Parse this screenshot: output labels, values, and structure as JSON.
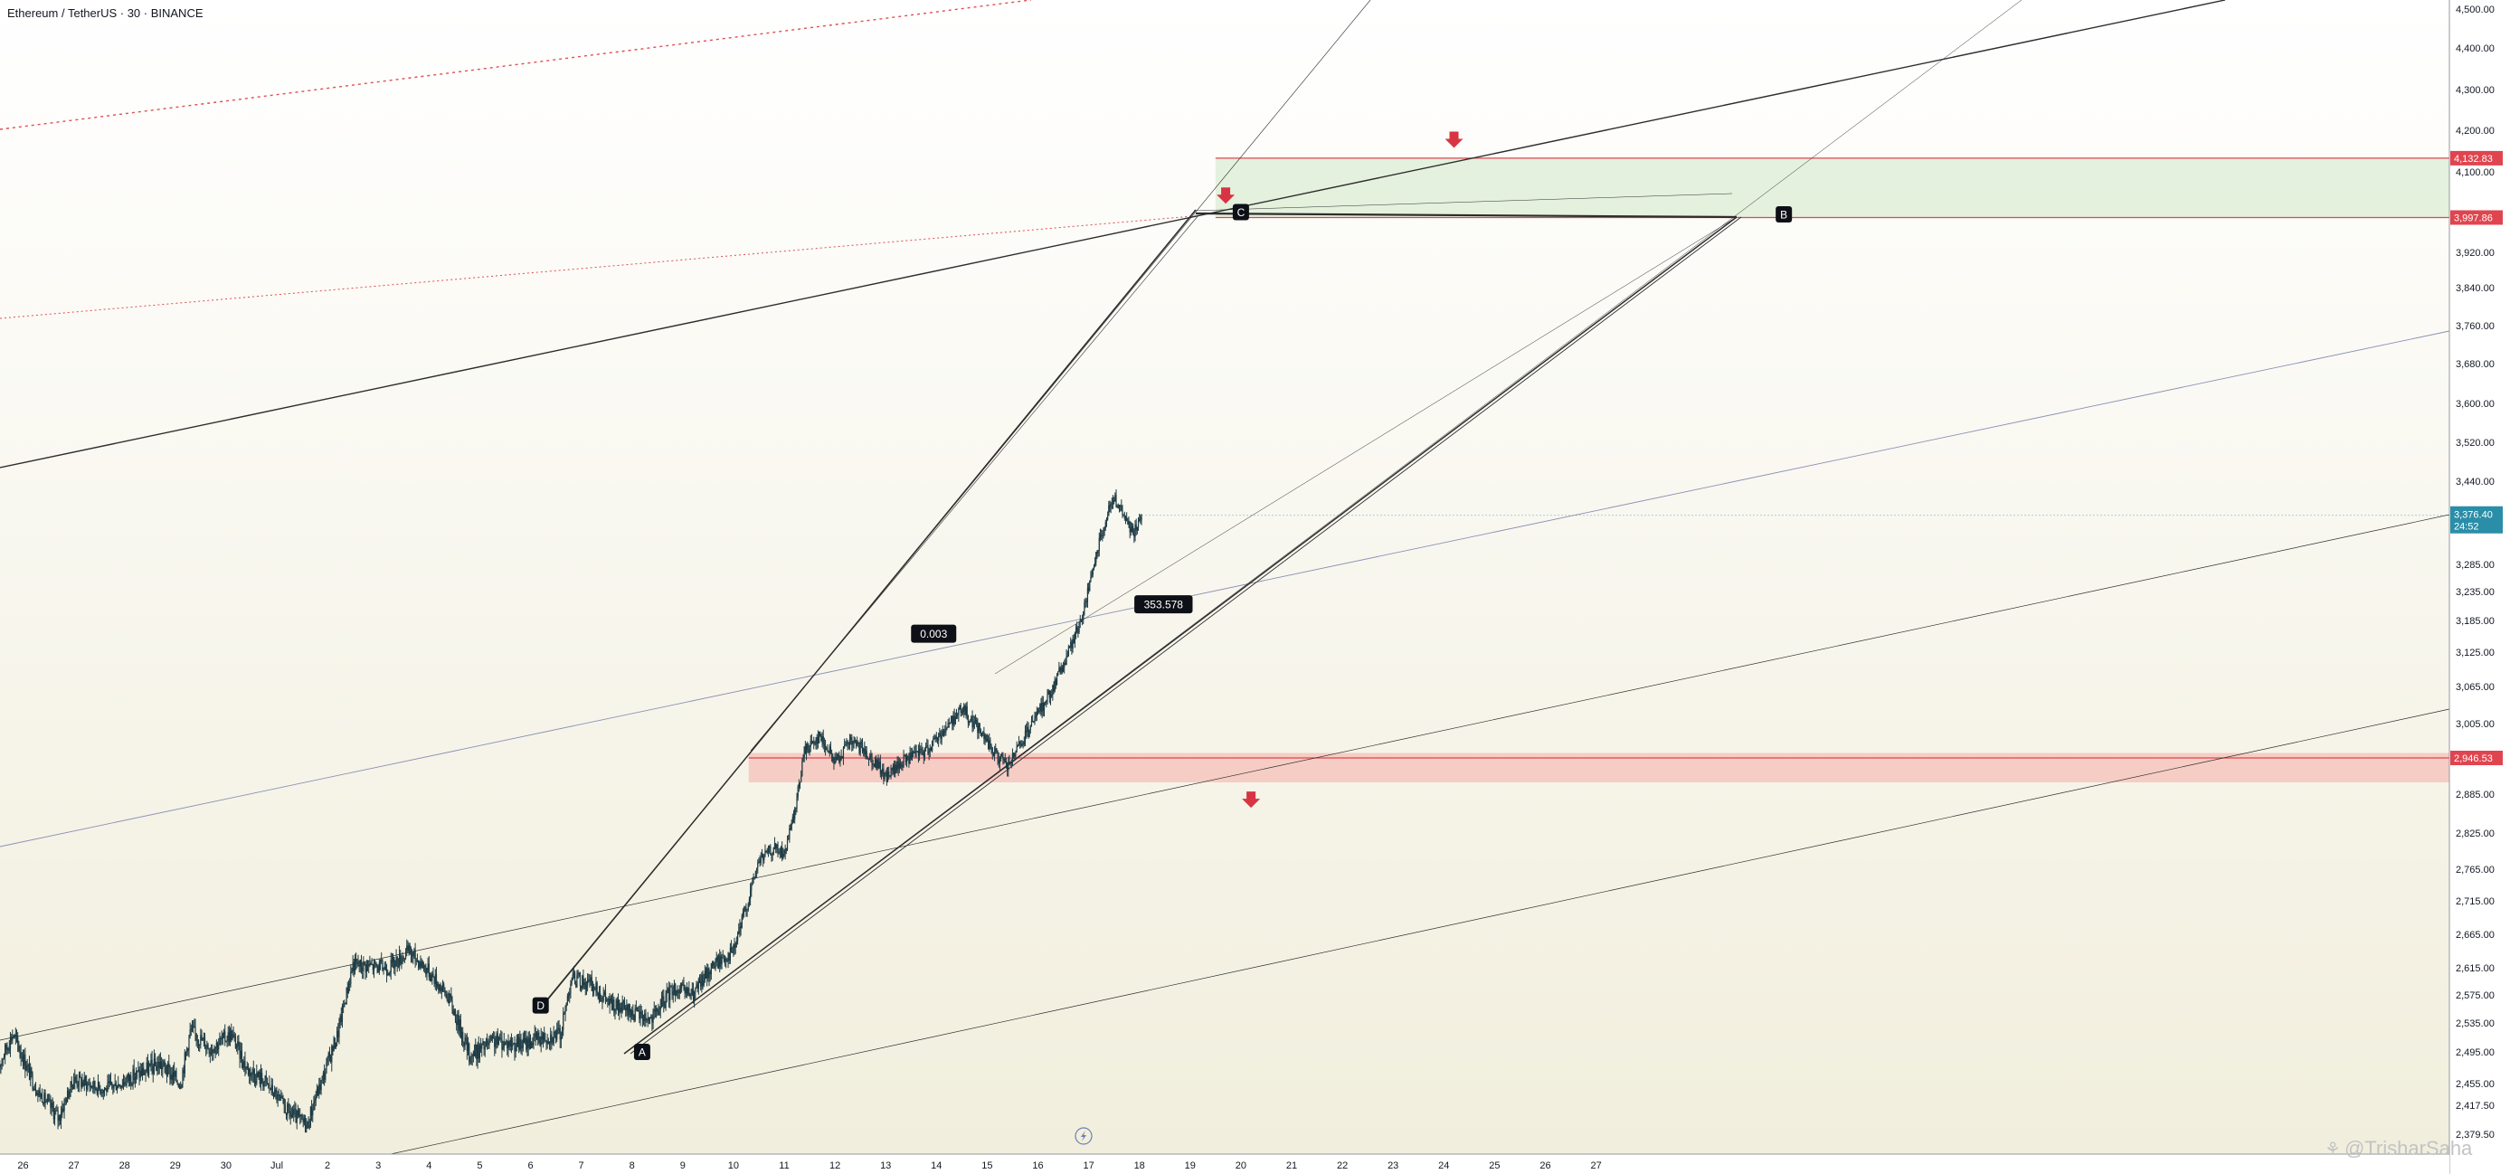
{
  "header": {
    "symbol_title": "Ethereum / TetherUS · 30 · BINANCE"
  },
  "watermark": {
    "text": "@TrisharSaha",
    "glyph": "⚘"
  },
  "colors": {
    "background_top": "#ffffff",
    "background_bottom": "#f1eedc",
    "candle": "#1d3a43",
    "price_label": "#2a8ea8",
    "level_label": "#e0454f",
    "arrow": "#d73543",
    "supply_zone": "#cfe8c7",
    "demand_zone": "#f6b3ab",
    "trend_line": "#2d2d2d",
    "red_dotted": "#e05050",
    "blue_line": "#8a8fb5",
    "badge": "#0d1117"
  },
  "chart_data": {
    "type": "candlestick",
    "title": "Ethereum / TetherUS · 30 · BINANCE",
    "yrange": [
      2350,
      4550
    ],
    "y_axis": {
      "scale": "piecewise-linear",
      "ticks": [
        "2,379.50",
        "2,417.50",
        "2,455.00",
        "2,495.00",
        "2,535.00",
        "2,575.00",
        "2,615.00",
        "2,665.00",
        "2,715.00",
        "2,765.00",
        "2,825.00",
        "2,885.00",
        "3,005.00",
        "3,065.00",
        "3,125.00",
        "3,185.00",
        "3,235.00",
        "3,285.00",
        "3,440.00",
        "3,520.00",
        "3,600.00",
        "3,680.00",
        "3,760.00",
        "3,840.00",
        "3,920.00",
        "4,100.00",
        "4,200.00",
        "4,300.00",
        "4,400.00",
        "4,500.00"
      ]
    },
    "x_axis": {
      "ticks": [
        "26",
        "27",
        "28",
        "29",
        "30",
        "Jul",
        "2",
        "3",
        "4",
        "5",
        "6",
        "7",
        "8",
        "9",
        "10",
        "11",
        "12",
        "13",
        "14",
        "15",
        "16",
        "17",
        "18",
        "19",
        "20",
        "21",
        "22",
        "23",
        "24",
        "25",
        "26",
        "27"
      ],
      "tick_days": [
        -5,
        -4,
        -3,
        -2,
        -1,
        0,
        1,
        2,
        3,
        4,
        5,
        6,
        7,
        8,
        9,
        10,
        11,
        12,
        13,
        14,
        15,
        16,
        17,
        18,
        19,
        20,
        21,
        22,
        23,
        24,
        25,
        26
      ]
    },
    "price_path": [
      {
        "day": -5.5,
        "price": 2475
      },
      {
        "day": -5.2,
        "price": 2520
      },
      {
        "day": -4.7,
        "price": 2440
      },
      {
        "day": -4.3,
        "price": 2400
      },
      {
        "day": -4.0,
        "price": 2460
      },
      {
        "day": -3.4,
        "price": 2445
      },
      {
        "day": -2.8,
        "price": 2465
      },
      {
        "day": -2.3,
        "price": 2480
      },
      {
        "day": -1.9,
        "price": 2455
      },
      {
        "day": -1.7,
        "price": 2525
      },
      {
        "day": -1.3,
        "price": 2500
      },
      {
        "day": -0.9,
        "price": 2520
      },
      {
        "day": -0.6,
        "price": 2475
      },
      {
        "day": -0.2,
        "price": 2455
      },
      {
        "day": 0.2,
        "price": 2410
      },
      {
        "day": 0.6,
        "price": 2390
      },
      {
        "day": 0.8,
        "price": 2440
      },
      {
        "day": 1.2,
        "price": 2520
      },
      {
        "day": 1.5,
        "price": 2620
      },
      {
        "day": 2.2,
        "price": 2615
      },
      {
        "day": 2.6,
        "price": 2640
      },
      {
        "day": 3.0,
        "price": 2610
      },
      {
        "day": 3.4,
        "price": 2570
      },
      {
        "day": 3.8,
        "price": 2490
      },
      {
        "day": 4.3,
        "price": 2510
      },
      {
        "day": 4.8,
        "price": 2505
      },
      {
        "day": 5.2,
        "price": 2515
      },
      {
        "day": 5.6,
        "price": 2520
      },
      {
        "day": 5.8,
        "price": 2600
      },
      {
        "day": 6.2,
        "price": 2590
      },
      {
        "day": 6.6,
        "price": 2560
      },
      {
        "day": 7.0,
        "price": 2550
      },
      {
        "day": 7.4,
        "price": 2540
      },
      {
        "day": 7.8,
        "price": 2585
      },
      {
        "day": 8.2,
        "price": 2575
      },
      {
        "day": 8.6,
        "price": 2620
      },
      {
        "day": 9.0,
        "price": 2640
      },
      {
        "day": 9.3,
        "price": 2720
      },
      {
        "day": 9.5,
        "price": 2780
      },
      {
        "day": 9.8,
        "price": 2800
      },
      {
        "day": 10.0,
        "price": 2790
      },
      {
        "day": 10.2,
        "price": 2850
      },
      {
        "day": 10.4,
        "price": 2960
      },
      {
        "day": 10.7,
        "price": 2985
      },
      {
        "day": 11.0,
        "price": 2940
      },
      {
        "day": 11.3,
        "price": 2975
      },
      {
        "day": 11.7,
        "price": 2950
      },
      {
        "day": 12.0,
        "price": 2915
      },
      {
        "day": 12.4,
        "price": 2945
      },
      {
        "day": 12.8,
        "price": 2960
      },
      {
        "day": 13.1,
        "price": 2990
      },
      {
        "day": 13.5,
        "price": 3030
      },
      {
        "day": 13.8,
        "price": 3000
      },
      {
        "day": 14.1,
        "price": 2960
      },
      {
        "day": 14.4,
        "price": 2930
      },
      {
        "day": 14.7,
        "price": 2975
      },
      {
        "day": 15.0,
        "price": 3020
      },
      {
        "day": 15.3,
        "price": 3065
      },
      {
        "day": 15.6,
        "price": 3125
      },
      {
        "day": 15.9,
        "price": 3200
      },
      {
        "day": 16.1,
        "price": 3280
      },
      {
        "day": 16.3,
        "price": 3360
      },
      {
        "day": 16.5,
        "price": 3410
      },
      {
        "day": 16.7,
        "price": 3370
      },
      {
        "day": 16.9,
        "price": 3345
      },
      {
        "day": 17.05,
        "price": 3376.4
      }
    ],
    "current_price": {
      "value": "3,376.40",
      "countdown": "24:52",
      "price": 3376.4
    },
    "levels": [
      {
        "label": "4,132.83",
        "price": 4132.83
      },
      {
        "label": "3,997.86",
        "price": 3997.86
      },
      {
        "label": "2,946.53",
        "price": 2946.53
      }
    ],
    "zones": [
      {
        "name": "supply-zone",
        "from_day": 18.5,
        "price_top": 4132.83,
        "price_bottom": 3997.86
      },
      {
        "name": "demand-zone",
        "from_day": 9.3,
        "price_top": 2955,
        "price_bottom": 2905
      }
    ],
    "pattern_points": [
      {
        "label": "D",
        "day": 5.2,
        "price": 2560
      },
      {
        "label": "A",
        "day": 7.2,
        "price": 2495
      },
      {
        "label": "C",
        "day": 19.0,
        "price": 4010
      },
      {
        "label": "B",
        "day": 29.7,
        "price": 4005
      }
    ],
    "annotations": [
      {
        "label": "0.003",
        "day": 12.5,
        "price": 3160
      },
      {
        "label": "353.578",
        "day": 16.9,
        "price": 3213
      }
    ],
    "arrows": [
      {
        "name": "arrow-down-c",
        "day": 18.7,
        "price": 4045
      },
      {
        "name": "arrow-down-top",
        "day": 23.2,
        "price": 4175
      },
      {
        "name": "arrow-down-demand",
        "day": 19.2,
        "price": 2875
      }
    ]
  }
}
